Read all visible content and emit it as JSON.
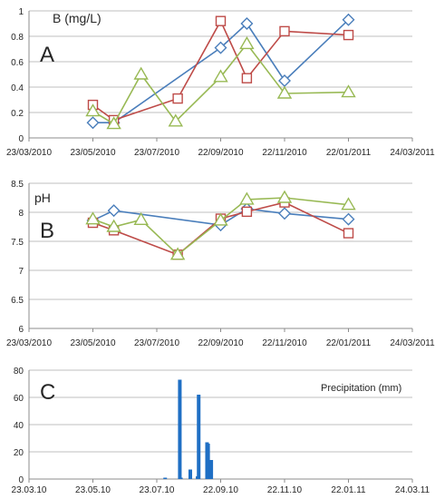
{
  "chart_data": [
    {
      "type": "line",
      "panel_label": "A",
      "ylabel": "B (mg/L)",
      "x_ticks": [
        "23/03/2010",
        "23/05/2010",
        "23/07/2010",
        "22/09/2010",
        "22/11/2010",
        "22/01/2011",
        "24/03/2011"
      ],
      "x_range": [
        "2010-03-23",
        "2011-03-24"
      ],
      "ylim": [
        0,
        1
      ],
      "y_ticks": [
        "0",
        "0.2",
        "0.4",
        "0.6",
        "0.8",
        "1"
      ],
      "grid": true,
      "series": [
        {
          "color": "#4a7ebb",
          "marker": "diamond",
          "x": [
            "2010-05-23",
            "2010-06-12",
            "2010-09-22",
            "2010-10-17",
            "2010-11-22",
            "2011-01-22"
          ],
          "y": [
            0.12,
            0.12,
            0.71,
            0.9,
            0.45,
            0.93
          ]
        },
        {
          "color": "#be4b48",
          "marker": "square",
          "x": [
            "2010-05-23",
            "2010-06-12",
            "2010-08-12",
            "2010-09-22",
            "2010-10-17",
            "2010-11-22",
            "2011-01-22"
          ],
          "y": [
            0.26,
            0.14,
            0.31,
            0.92,
            0.47,
            0.84,
            0.81
          ]
        },
        {
          "color": "#98b954",
          "marker": "triangle",
          "x": [
            "2010-05-23",
            "2010-06-12",
            "2010-07-08",
            "2010-08-10",
            "2010-09-22",
            "2010-10-17",
            "2010-11-22",
            "2011-01-22"
          ],
          "y": [
            0.21,
            0.11,
            0.5,
            0.13,
            0.48,
            0.74,
            0.35,
            0.36
          ]
        }
      ]
    },
    {
      "type": "line",
      "panel_label": "B",
      "ylabel": "pH",
      "x_ticks": [
        "23/03/2010",
        "23/05/2010",
        "23/07/2010",
        "22/09/2010",
        "22/11/2010",
        "22/01/2011",
        "24/03/2011"
      ],
      "x_range": [
        "2010-03-23",
        "2011-03-24"
      ],
      "ylim": [
        6,
        8.5
      ],
      "y_ticks": [
        "6",
        "6.5",
        "7",
        "7.5",
        "8",
        "8.5"
      ],
      "grid": true,
      "series": [
        {
          "color": "#4a7ebb",
          "marker": "diamond",
          "x": [
            "2010-05-23",
            "2010-06-12",
            "2010-09-22",
            "2010-10-17",
            "2010-11-22",
            "2011-01-22"
          ],
          "y": [
            7.86,
            8.03,
            7.78,
            8.06,
            7.98,
            7.88
          ]
        },
        {
          "color": "#be4b48",
          "marker": "square",
          "x": [
            "2010-05-23",
            "2010-06-12",
            "2010-08-12",
            "2010-09-22",
            "2010-10-17",
            "2010-11-22",
            "2011-01-22"
          ],
          "y": [
            7.82,
            7.69,
            7.27,
            7.89,
            8.01,
            8.17,
            7.64
          ]
        },
        {
          "color": "#98b954",
          "marker": "triangle",
          "x": [
            "2010-05-23",
            "2010-06-12",
            "2010-07-08",
            "2010-08-12",
            "2010-09-22",
            "2010-10-17",
            "2010-11-22",
            "2011-01-22"
          ],
          "y": [
            7.88,
            7.75,
            7.87,
            7.27,
            7.86,
            8.22,
            8.25,
            8.13
          ]
        }
      ]
    },
    {
      "type": "bar",
      "panel_label": "C",
      "title": "Precipitation (mm)",
      "x_ticks": [
        "23.03.10",
        "23.05.10",
        "23.07.10",
        "22.09.10",
        "22.11.10",
        "22.01.11",
        "24.03.11"
      ],
      "x_range": [
        "2010-03-23",
        "2011-03-24"
      ],
      "ylim": [
        0,
        80
      ],
      "y_ticks": [
        "0",
        "20",
        "40",
        "60",
        "80"
      ],
      "grid": true,
      "color": "#1f6fc4",
      "x": [
        "2010-07-31",
        "2010-08-14",
        "2010-08-15",
        "2010-08-24",
        "2010-08-31",
        "2010-09-01",
        "2010-09-09",
        "2010-09-10",
        "2010-09-12",
        "2010-09-13"
      ],
      "values": [
        1,
        73,
        1,
        7,
        2,
        62,
        27,
        26,
        8,
        14
      ]
    }
  ]
}
